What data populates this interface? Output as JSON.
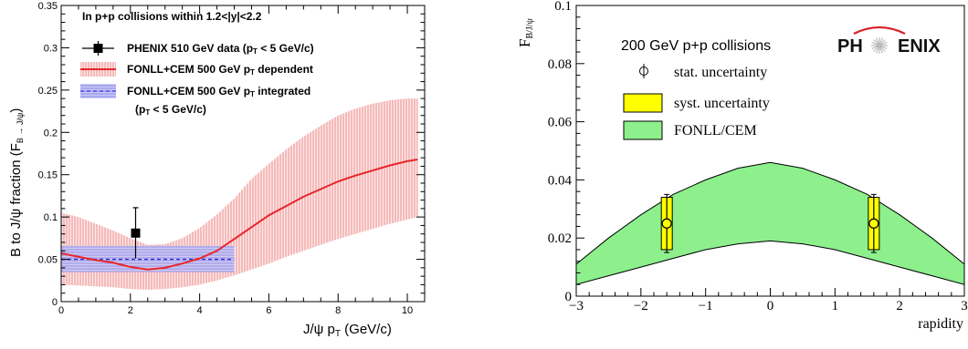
{
  "chart_data": [
    {
      "type": "line",
      "xlabel": "J/ψ p",
      "xlabel_sub": "T",
      "xlabel_unit": " (GeV/c)",
      "ylabel": "B to J/ψ fraction (F",
      "ylabel_sub": "B → J/ψ",
      "ylabel_close": ")",
      "xlim": [
        0,
        10.5
      ],
      "ylim": [
        0,
        0.35
      ],
      "x_ticks": [
        "0",
        "2",
        "4",
        "6",
        "8",
        "10"
      ],
      "y_ticks": [
        "0",
        "0.05",
        "0.1",
        "0.15",
        "0.2",
        "0.25",
        "0.3",
        "0.35"
      ],
      "header": "In p+p collisions within 1.2<|y|<2.2",
      "legend": [
        {
          "text": "PHENIX 510 GeV data (p",
          "sub": "T",
          "tail": " < 5 GeV/c)"
        },
        {
          "text": "FONLL+CEM 500 GeV p",
          "sub": "T",
          "tail": " dependent"
        },
        {
          "text": "FONLL+CEM 500 GeV p",
          "sub": "T",
          "tail": " integrated"
        },
        {
          "text": "(p",
          "sub": "T",
          "tail": " < 5 GeV/c)"
        }
      ],
      "series": [
        {
          "x": [
            0,
            0.5,
            1,
            1.5,
            2,
            2.5,
            3,
            3.5,
            4,
            4.5,
            5,
            5.5,
            6,
            6.5,
            7,
            7.5,
            8,
            8.5,
            9,
            9.5,
            10,
            10.3
          ],
          "y": [
            0.057,
            0.053,
            0.049,
            0.046,
            0.041,
            0.038,
            0.04,
            0.045,
            0.051,
            0.06,
            0.074,
            0.088,
            0.102,
            0.113,
            0.124,
            0.133,
            0.142,
            0.149,
            0.155,
            0.161,
            0.166,
            0.168
          ],
          "band_low": [
            0.02,
            0.019,
            0.018,
            0.017,
            0.015,
            0.014,
            0.015,
            0.017,
            0.02,
            0.025,
            0.031,
            0.038,
            0.045,
            0.053,
            0.06,
            0.067,
            0.074,
            0.08,
            0.086,
            0.092,
            0.097,
            0.1
          ],
          "band_high": [
            0.105,
            0.1,
            0.092,
            0.084,
            0.075,
            0.067,
            0.068,
            0.075,
            0.087,
            0.103,
            0.122,
            0.145,
            0.163,
            0.18,
            0.195,
            0.208,
            0.22,
            0.228,
            0.234,
            0.238,
            0.24,
            0.24
          ],
          "color": "#e8262a"
        },
        {
          "x": [
            0,
            5
          ],
          "y": [
            0.05,
            0.05
          ],
          "band_low": 0.035,
          "band_high": 0.066,
          "color": "#2a2ae0"
        },
        {
          "x": [
            2.15
          ],
          "y": [
            0.081
          ],
          "err_low": 0.051,
          "err_high": 0.111,
          "color": "#000000"
        }
      ]
    },
    {
      "type": "line",
      "ylabel": "F",
      "ylabel_sub": "B/J/ψ",
      "xlabel": "rapidity",
      "xlim": [
        -3,
        3
      ],
      "ylim": [
        0,
        0.1
      ],
      "x_ticks": [
        "−3",
        "−2",
        "−1",
        "0",
        "1",
        "2",
        "3"
      ],
      "y_ticks": [
        "0",
        "0.02",
        "0.04",
        "0.06",
        "0.08",
        "0.1"
      ],
      "header": "200 GeV p+p collisions",
      "logo": "PH ENIX",
      "legend": [
        {
          "text": "stat. uncertainty"
        },
        {
          "text": "syst. uncertainty"
        },
        {
          "text": "FONLL/CEM"
        }
      ],
      "band": {
        "x": [
          -3,
          -2.5,
          -2,
          -1.5,
          -1,
          -0.5,
          0,
          0.5,
          1,
          1.5,
          2,
          2.5,
          3
        ],
        "low": [
          0.004,
          0.007,
          0.01,
          0.013,
          0.016,
          0.018,
          0.019,
          0.018,
          0.016,
          0.013,
          0.01,
          0.007,
          0.004
        ],
        "high": [
          0.011,
          0.02,
          0.028,
          0.035,
          0.04,
          0.044,
          0.046,
          0.044,
          0.04,
          0.035,
          0.028,
          0.02,
          0.011
        ],
        "color": "#8df08d"
      },
      "series": [
        {
          "x": [
            -1.6,
            1.6
          ],
          "y": [
            0.025,
            0.025
          ],
          "stat_low": [
            0.015,
            0.015
          ],
          "stat_high": [
            0.035,
            0.035
          ],
          "syst_low": [
            0.016,
            0.016
          ],
          "syst_high": [
            0.034,
            0.034
          ],
          "color": "#ffff00"
        }
      ]
    }
  ]
}
